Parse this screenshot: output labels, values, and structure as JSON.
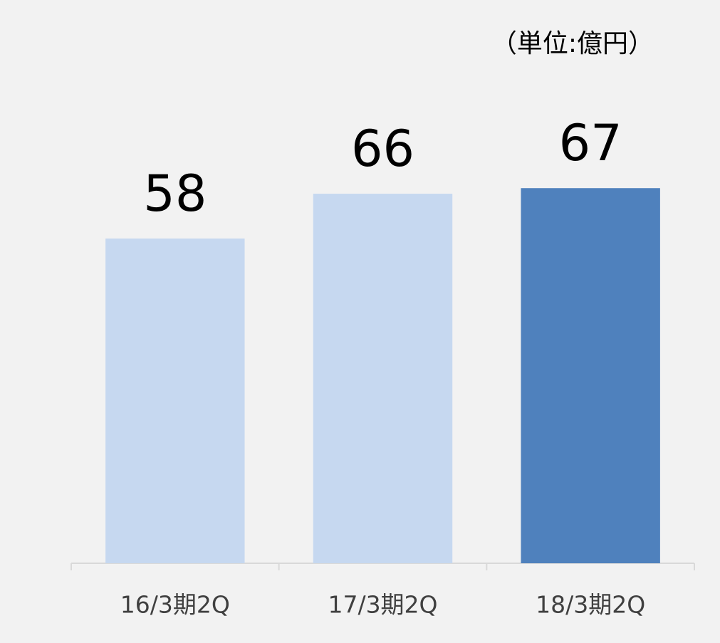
{
  "chart_data": {
    "type": "bar",
    "unit": "（単位:億円）",
    "categories": [
      "16/3期2Q",
      "17/3期2Q",
      "18/3期2Q"
    ],
    "values": [
      58,
      66,
      67
    ],
    "colors": [
      "#c6d8f0",
      "#c6d8f0",
      "#4f81bd"
    ],
    "ylim": [
      0,
      80
    ]
  }
}
